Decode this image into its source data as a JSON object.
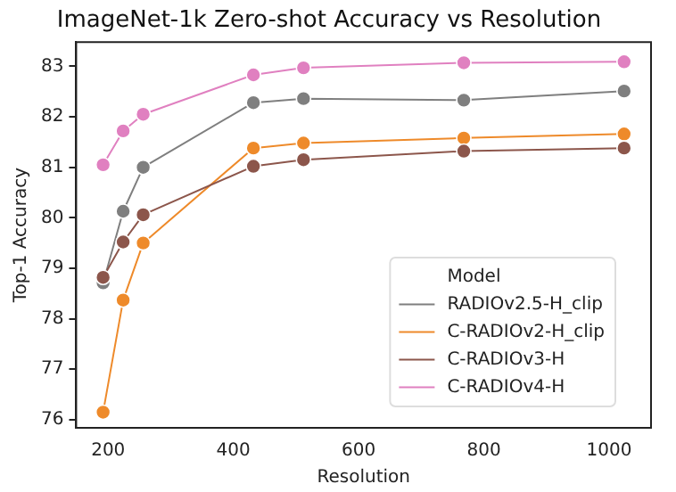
{
  "chart_data": {
    "type": "line",
    "title": "ImageNet-1k Zero-shot Accuracy vs Resolution",
    "xlabel": "Resolution",
    "ylabel": "Top-1 Accuracy",
    "legend_title": "Model",
    "legend": "bottom right",
    "marker": "circle",
    "grid": false,
    "x": [
      192,
      224,
      256,
      432,
      512,
      768,
      1024
    ],
    "xlim": [
      149,
      1067
    ],
    "xticks": [
      200,
      400,
      600,
      800,
      1000
    ],
    "ylim": [
      75.84,
      83.48
    ],
    "yticks": [
      76,
      77,
      78,
      79,
      80,
      81,
      82,
      83
    ],
    "series": [
      {
        "name": "RADIOv2.5-H_clip",
        "color": "#7f7f7f",
        "values": [
          78.71,
          80.13,
          81.0,
          82.28,
          82.36,
          82.33,
          82.51
        ]
      },
      {
        "name": "C-RADIOv2-H_clip",
        "color": "#ee8a2a",
        "values": [
          76.15,
          78.37,
          79.5,
          81.38,
          81.48,
          81.58,
          81.66
        ]
      },
      {
        "name": "C-RADIOv3-H",
        "color": "#8c564b",
        "values": [
          78.82,
          79.52,
          80.06,
          81.02,
          81.15,
          81.32,
          81.38
        ]
      },
      {
        "name": "C-RADIOv4-H",
        "color": "#e080c0",
        "values": [
          81.05,
          81.72,
          82.05,
          82.83,
          82.97,
          83.07,
          83.09
        ]
      }
    ]
  }
}
